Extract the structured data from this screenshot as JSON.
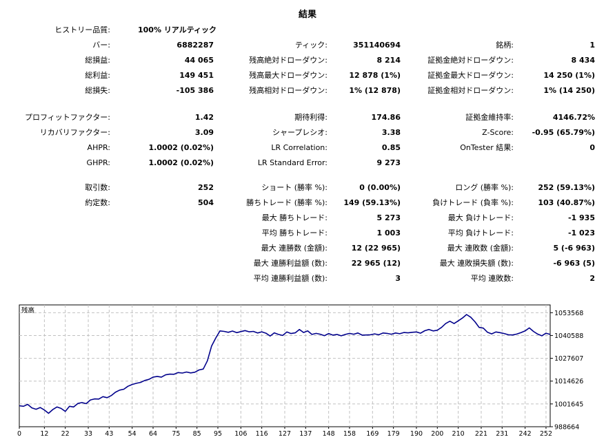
{
  "title": "結果",
  "history": {
    "label": "ヒストリー品質:",
    "value": "100% リアルティック"
  },
  "block1": {
    "rows": [
      {
        "l1": "バー:",
        "v1": "6882287",
        "l2": "ティック:",
        "v2": "351140694",
        "l3": "銘柄:",
        "v3": "1"
      },
      {
        "l1": "総損益:",
        "v1": "44 065",
        "l2": "残高絶対ドローダウン:",
        "v2": "8 214",
        "l3": "証拠金絶対ドローダウン:",
        "v3": "8 434"
      },
      {
        "l1": "総利益:",
        "v1": "149 451",
        "l2": "残高最大ドローダウン:",
        "v2": "12 878 (1%)",
        "l3": "証拠金最大ドローダウン:",
        "v3": "14 250 (1%)"
      },
      {
        "l1": "総損失:",
        "v1": "-105 386",
        "l2": "残高相対ドローダウン:",
        "v2": "1% (12 878)",
        "l3": "証拠金相対ドローダウン:",
        "v3": "1% (14 250)"
      }
    ]
  },
  "block2": {
    "rows": [
      {
        "l1": "プロフィットファクター:",
        "v1": "1.42",
        "l2": "期待利得:",
        "v2": "174.86",
        "l3": "証拠金維持率:",
        "v3": "4146.72%"
      },
      {
        "l1": "リカバリファクター:",
        "v1": "3.09",
        "l2": "シャープレシオ:",
        "v2": "3.38",
        "l3": "Z-Score:",
        "v3": "-0.95 (65.79%)"
      },
      {
        "l1": "AHPR:",
        "v1": "1.0002 (0.02%)",
        "l2": "LR Correlation:",
        "v2": "0.85",
        "l3": "OnTester 結果:",
        "v3": "0"
      },
      {
        "l1": "GHPR:",
        "v1": "1.0002 (0.02%)",
        "l2": "LR Standard Error:",
        "v2": "9 273",
        "l3": "",
        "v3": ""
      }
    ]
  },
  "block3": {
    "rows": [
      {
        "l1": "取引数:",
        "v1": "252",
        "l2": "ショート (勝率 %):",
        "v2": "0 (0.00%)",
        "l3": "ロング (勝率 %):",
        "v3": "252 (59.13%)"
      },
      {
        "l1": "約定数:",
        "v1": "504",
        "l2": "勝ちトレード (勝率 %):",
        "v2": "149 (59.13%)",
        "l3": "負けトレード (負率 %):",
        "v3": "103 (40.87%)"
      },
      {
        "l1": "",
        "v1": "",
        "l2": "最大 勝ちトレード:",
        "v2": "5 273",
        "l3": "最大 負けトレード:",
        "v3": "-1 935"
      },
      {
        "l1": "",
        "v1": "",
        "l2": "平均 勝ちトレード:",
        "v2": "1 003",
        "l3": "平均 負けトレード:",
        "v3": "-1 023"
      },
      {
        "l1": "",
        "v1": "",
        "l2": "最大 連勝数 (金額):",
        "v2": "12 (22 965)",
        "l3": "最大 連敗数 (金額):",
        "v3": "5 (-6 963)"
      },
      {
        "l1": "",
        "v1": "",
        "l2": "最大 連勝利益額 (数):",
        "v2": "22 965 (12)",
        "l3": "最大 連敗損失額 (数):",
        "v3": "-6 963 (5)"
      },
      {
        "l1": "",
        "v1": "",
        "l2": "平均 連勝利益額 (数):",
        "v2": "3",
        "l3": "平均 連敗数:",
        "v3": "2"
      }
    ]
  },
  "chart_data": {
    "type": "line",
    "title": "残高",
    "line_color": "#00008b",
    "ylim": [
      988664,
      1058000
    ],
    "y_ticks": [
      {
        "v": 1053568,
        "label": "1053568"
      },
      {
        "v": 1040588,
        "label": "1040588"
      },
      {
        "v": 1027607,
        "label": "1027607"
      },
      {
        "v": 1014626,
        "label": "1014626"
      },
      {
        "v": 1001645,
        "label": "1001645"
      },
      {
        "v": 988664,
        "label": "988664"
      }
    ],
    "x_ticks": [
      "0",
      "12",
      "22",
      "33",
      "43",
      "54",
      "64",
      "75",
      "85",
      "95",
      "106",
      "116",
      "127",
      "137",
      "148",
      "158",
      "169",
      "179",
      "190",
      "200",
      "210",
      "221",
      "231",
      "242",
      "252"
    ],
    "series": [
      {
        "x": [
          0,
          2,
          4,
          6,
          8,
          10,
          12,
          14,
          16,
          18,
          20,
          22,
          24,
          26,
          28,
          30,
          32,
          34,
          36,
          38,
          40,
          42,
          44,
          46,
          48,
          50,
          52,
          54,
          56,
          58,
          60,
          62,
          64,
          66,
          68,
          70,
          72,
          74,
          76,
          78,
          80,
          82,
          84,
          86,
          88,
          90,
          92,
          94,
          96,
          98,
          100,
          102,
          104,
          106,
          108,
          110,
          112,
          114,
          116,
          118,
          120,
          122,
          124,
          126,
          128,
          130,
          132,
          134,
          136,
          138,
          140,
          142,
          144,
          146,
          148,
          150,
          152,
          154,
          156,
          158,
          160,
          162,
          164,
          166,
          168,
          170,
          172,
          174,
          176,
          178,
          180,
          182,
          184,
          186,
          188,
          190,
          192,
          194,
          196,
          198,
          200,
          202,
          204,
          206,
          208,
          210,
          212,
          214,
          216,
          218,
          220,
          222,
          224,
          226,
          228,
          230,
          232,
          234,
          236,
          238,
          240,
          242,
          244,
          246,
          248,
          250,
          252,
          254
        ],
        "y": [
          1000600,
          1000300,
          1001400,
          999400,
          998600,
          999600,
          998200,
          996300,
          998400,
          999900,
          999100,
          997400,
          1000300,
          999900,
          1001900,
          1002400,
          1001800,
          1003900,
          1004500,
          1004400,
          1005800,
          1005200,
          1006400,
          1008300,
          1009500,
          1010000,
          1011700,
          1012700,
          1013400,
          1013900,
          1015000,
          1015600,
          1016900,
          1017300,
          1016900,
          1018200,
          1018600,
          1018500,
          1019500,
          1019200,
          1019800,
          1019300,
          1019700,
          1021000,
          1021500,
          1026200,
          1034600,
          1039200,
          1043200,
          1042900,
          1042400,
          1043100,
          1042200,
          1042800,
          1043400,
          1042700,
          1042900,
          1042000,
          1042700,
          1041900,
          1040300,
          1042100,
          1041200,
          1040600,
          1042600,
          1041700,
          1042100,
          1044000,
          1042300,
          1043200,
          1041200,
          1041800,
          1041300,
          1040500,
          1041700,
          1040800,
          1041200,
          1040400,
          1041200,
          1041800,
          1041300,
          1042000,
          1040800,
          1040900,
          1041000,
          1041500,
          1041000,
          1042000,
          1041800,
          1041300,
          1042000,
          1041600,
          1042300,
          1042100,
          1042400,
          1042600,
          1041900,
          1043300,
          1044000,
          1043200,
          1043600,
          1045200,
          1047400,
          1048700,
          1047400,
          1048900,
          1050500,
          1052500,
          1051000,
          1048400,
          1045200,
          1044800,
          1042400,
          1041500,
          1042600,
          1042200,
          1041700,
          1041000,
          1040900,
          1041400,
          1042200,
          1043200,
          1044900,
          1042900,
          1041400,
          1040400,
          1041900,
          1041200
        ]
      }
    ]
  }
}
